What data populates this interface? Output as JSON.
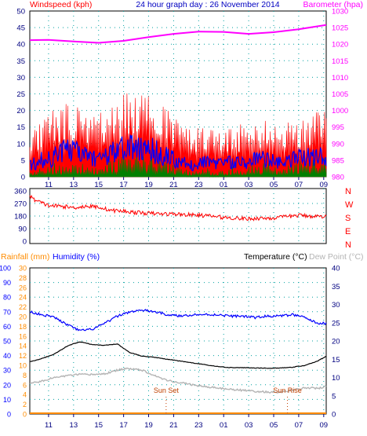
{
  "header": {
    "windspeed_label": "Windspeed (kph)",
    "title": "24 hour graph day : 26 November 2014",
    "barometer_label": "Barometer (hpa)"
  },
  "colors": {
    "background": "#ffffff",
    "axis_text": "#000080",
    "wind_gust": "#ff0000",
    "wind_avg": "#0000ff",
    "wind_green": "#008000",
    "barometer": "#ff00ff",
    "direction": "#ff0000",
    "compass": "#ff0000",
    "rainfall": "#ff8c00",
    "humidity": "#0000ff",
    "temperature": "#000000",
    "dewpoint": "#b4b4b4",
    "grid": "#00a0a0",
    "ticks": "#000080",
    "sun_marker": "#c04000"
  },
  "compass_labels": [
    "N",
    "W",
    "S",
    "E",
    "N"
  ],
  "bottom_header": {
    "rainfall_label": "Rainfall (mm)",
    "humidity_label": "Humidity (%)",
    "temperature_label": "Temperature (°C)",
    "dewpoint_label": "Dew Point (°C)"
  },
  "annotations": {
    "sunset": "Sun Set",
    "sunrise": "Sun Rise"
  },
  "chart_data": [
    {
      "type": "line",
      "id": "wind_pressure",
      "x_ticks": [
        "11",
        "13",
        "15",
        "17",
        "19",
        "21",
        "23",
        "01",
        "03",
        "05",
        "07",
        "09"
      ],
      "x_range_hours": [
        9.5,
        33.2
      ],
      "left_axis": {
        "label": "Windspeed (kph)",
        "ylim": [
          0,
          50
        ],
        "ticks": [
          0,
          5,
          10,
          15,
          20,
          25,
          30,
          35,
          40,
          45,
          50
        ]
      },
      "right_axis": {
        "label": "Barometer (hpa)",
        "ylim": [
          980,
          1030
        ],
        "ticks": [
          980,
          985,
          990,
          995,
          1000,
          1005,
          1010,
          1015,
          1020,
          1025,
          1030
        ]
      },
      "series": [
        {
          "name": "wind_gust",
          "axis": "left",
          "x": [
            9.5,
            10.5,
            11.5,
            12.5,
            13.5,
            14.5,
            15.5,
            16.5,
            17.5,
            18.5,
            19.5,
            20.5,
            21.5,
            22.5,
            23.5,
            24.5,
            25.5,
            26.5,
            27.5,
            28.5,
            29.5,
            30.5,
            31.5,
            32.5,
            33.2
          ],
          "values": [
            10,
            16,
            18,
            20,
            19,
            17,
            18,
            20,
            23,
            24,
            21,
            18,
            14,
            12,
            14,
            12,
            13,
            14,
            14,
            16,
            13,
            15,
            16,
            17,
            18
          ]
        },
        {
          "name": "wind_avg",
          "axis": "left",
          "x": [
            9.5,
            10.5,
            11.5,
            12.5,
            13.5,
            14.5,
            15.5,
            16.5,
            17.5,
            18.5,
            19.5,
            20.5,
            21.5,
            22.5,
            23.5,
            24.5,
            25.5,
            26.5,
            27.5,
            28.5,
            29.5,
            30.5,
            31.5,
            32.5,
            33.2
          ],
          "values": [
            4,
            6,
            7,
            9,
            8,
            7,
            7,
            9,
            10,
            10,
            9,
            7,
            5,
            4,
            5,
            4,
            5,
            5,
            6,
            6,
            5,
            6,
            7,
            7,
            7
          ]
        },
        {
          "name": "wind_min",
          "axis": "left",
          "x": [
            9.5,
            10.5,
            11.5,
            12.5,
            13.5,
            14.5,
            15.5,
            16.5,
            17.5,
            18.5,
            19.5,
            20.5,
            21.5,
            22.5,
            23.5,
            24.5,
            25.5,
            26.5,
            27.5,
            28.5,
            29.5,
            30.5,
            31.5,
            32.5,
            33.2
          ],
          "values": [
            1,
            2,
            3,
            3,
            3,
            2,
            3,
            4,
            5,
            5,
            4,
            3,
            2,
            1,
            2,
            1,
            2,
            2,
            3,
            3,
            2,
            3,
            4,
            4,
            4
          ]
        },
        {
          "name": "barometer",
          "axis": "right",
          "x": [
            9.5,
            11,
            13,
            15,
            17,
            19,
            21,
            23,
            25,
            27,
            29,
            31,
            33.2
          ],
          "values": [
            1021.2,
            1021.3,
            1020.8,
            1020.4,
            1021.0,
            1022.1,
            1023.1,
            1023.8,
            1023.7,
            1023.1,
            1023.6,
            1024.5,
            1025.8
          ]
        }
      ]
    },
    {
      "type": "line",
      "id": "wind_direction",
      "x_ticks": [
        "11",
        "13",
        "15",
        "17",
        "19",
        "21",
        "23",
        "01",
        "03",
        "05",
        "07",
        "09"
      ],
      "left_axis": {
        "ylim": [
          0,
          360
        ],
        "ticks": [
          0,
          90,
          180,
          270,
          360
        ]
      },
      "series": [
        {
          "name": "direction",
          "x": [
            9.5,
            10,
            11,
            12,
            13,
            14,
            15,
            16,
            17,
            18,
            19,
            20,
            21,
            22,
            23,
            24,
            25,
            26,
            27,
            28,
            29,
            30,
            31,
            32,
            33.2
          ],
          "values": [
            320,
            290,
            255,
            250,
            240,
            250,
            245,
            220,
            215,
            205,
            200,
            195,
            195,
            190,
            185,
            180,
            170,
            165,
            160,
            165,
            165,
            175,
            185,
            180,
            175
          ]
        }
      ]
    },
    {
      "type": "line",
      "id": "temperature_humidity",
      "x_ticks": [
        "11",
        "13",
        "15",
        "17",
        "19",
        "21",
        "23",
        "01",
        "03",
        "05",
        "07",
        "09"
      ],
      "left_axis_humidity": {
        "label": "Humidity (%)",
        "ylim": [
          0,
          100
        ],
        "ticks": [
          0,
          10,
          20,
          30,
          40,
          50,
          60,
          70,
          80,
          90,
          100
        ]
      },
      "left_axis_rainfall": {
        "label": "Rainfall (mm)",
        "ylim": [
          0,
          30
        ],
        "ticks": [
          0,
          2,
          4,
          6,
          8,
          10,
          12,
          14,
          16,
          18,
          20,
          22,
          24,
          26,
          28,
          30
        ]
      },
      "right_axis": {
        "label": "Temperature (°C)",
        "ylim": [
          0,
          40
        ],
        "ticks": [
          0,
          5,
          10,
          15,
          20,
          25,
          30,
          35,
          40
        ]
      },
      "series": [
        {
          "name": "humidity",
          "axis": "humidity",
          "x": [
            9.5,
            10.5,
            11.5,
            12.5,
            13.5,
            14.5,
            15.5,
            16.5,
            17.5,
            18.5,
            19.5,
            20.5,
            21.5,
            22.5,
            23.5,
            24.5,
            25.5,
            26.5,
            27.5,
            28.5,
            29.5,
            30.5,
            31.5,
            32.5,
            33.2
          ],
          "values": [
            70,
            68,
            66,
            61,
            57,
            58,
            62,
            67,
            70,
            71,
            70,
            68,
            67,
            68,
            68,
            68,
            67,
            67,
            66,
            67,
            67,
            68,
            66,
            62,
            62
          ]
        },
        {
          "name": "temperature",
          "axis": "temperature",
          "x": [
            9.5,
            10.5,
            11.5,
            12.5,
            13.5,
            14.5,
            15.5,
            16.5,
            17.5,
            18.5,
            19.5,
            20.5,
            21.5,
            22.5,
            23.5,
            24.5,
            25.5,
            26.5,
            27.5,
            28.5,
            29.5,
            30.5,
            31.5,
            32.5,
            33.2
          ],
          "values": [
            14.3,
            15.2,
            16.5,
            18.6,
            19.8,
            19.0,
            18.8,
            19.2,
            16.8,
            15.8,
            15.5,
            15.0,
            14.5,
            14.0,
            13.5,
            13.0,
            12.7,
            12.7,
            12.6,
            12.5,
            12.6,
            12.8,
            13.3,
            14.5,
            15.8
          ]
        },
        {
          "name": "dewpoint",
          "axis": "temperature",
          "x": [
            9.5,
            10.5,
            11.5,
            12.5,
            13.5,
            14.5,
            15.5,
            16.5,
            17.5,
            18.5,
            19.5,
            20.5,
            21.5,
            22.5,
            23.5,
            24.5,
            25.5,
            26.5,
            27.5,
            28.5,
            29.5,
            30.5,
            31.5,
            32.5,
            33.2
          ],
          "values": [
            8.5,
            9.0,
            10.0,
            10.5,
            10.8,
            10.8,
            11.0,
            12.0,
            12.5,
            12.0,
            10.5,
            9.2,
            8.6,
            8.0,
            7.5,
            7.1,
            6.8,
            6.5,
            6.2,
            6.0,
            6.0,
            6.5,
            7.2,
            7.0,
            7.5
          ]
        },
        {
          "name": "rainfall",
          "axis": "rainfall",
          "x": [
            9.5,
            33.2
          ],
          "values": [
            0,
            0
          ]
        }
      ],
      "markers": {
        "sunset_hour": 20.4,
        "sunrise_hour": 30.1
      }
    }
  ]
}
